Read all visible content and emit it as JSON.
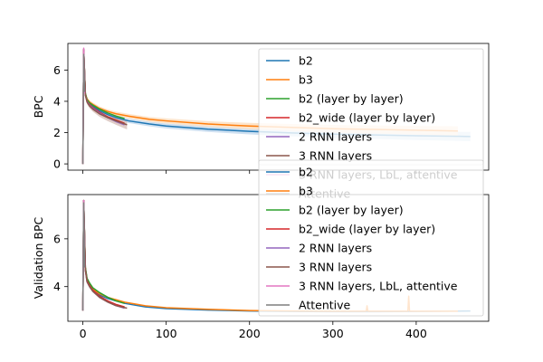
{
  "chart_data": [
    {
      "type": "line",
      "panel": "top",
      "ylabel": "BPC",
      "xlabel": "",
      "xlim": [
        -18,
        487
      ],
      "ylim": [
        -0.4,
        7.7
      ],
      "yticks": [
        0,
        2,
        4,
        6
      ],
      "xticks": [
        0,
        100,
        200,
        300,
        400
      ],
      "x_tick_labels_shown": false,
      "grid": false,
      "legend_position": "upper right",
      "series": [
        {
          "name": "b2",
          "color": "#1f77b4",
          "band_color": "#c6dbef",
          "x": [
            0,
            1,
            3,
            5,
            8,
            12,
            20,
            30,
            40,
            55,
            80,
            100,
            150,
            200,
            250,
            300,
            350,
            400,
            465
          ],
          "y": [
            0,
            7.3,
            4.5,
            4.1,
            3.9,
            3.7,
            3.4,
            3.15,
            2.95,
            2.75,
            2.55,
            2.42,
            2.22,
            2.08,
            1.98,
            1.9,
            1.85,
            1.8,
            1.75
          ]
        },
        {
          "name": "b3",
          "color": "#ff7f0e",
          "band_color": "#fde0c3",
          "x": [
            0,
            1,
            3,
            5,
            8,
            12,
            20,
            30,
            40,
            55,
            80,
            100,
            150,
            200,
            250,
            300,
            350,
            400,
            450
          ],
          "y": [
            0,
            7.3,
            4.5,
            4.15,
            3.95,
            3.8,
            3.55,
            3.35,
            3.2,
            3.05,
            2.85,
            2.75,
            2.55,
            2.42,
            2.33,
            2.25,
            2.2,
            2.15,
            2.1
          ]
        },
        {
          "name": "b2 (layer by layer)",
          "color": "#2ca02c",
          "x": [
            0,
            1,
            3,
            5,
            8,
            12,
            20,
            30,
            40,
            50
          ],
          "y": [
            0,
            7.3,
            4.5,
            4.1,
            3.9,
            3.75,
            3.5,
            3.25,
            3.05,
            2.9
          ]
        },
        {
          "name": "b2_wide (layer by layer)",
          "color": "#d62728",
          "x": [
            0,
            1,
            3,
            5,
            8,
            12,
            20,
            30,
            40,
            50
          ],
          "y": [
            0,
            7.3,
            4.4,
            4.0,
            3.8,
            3.6,
            3.3,
            3.0,
            2.8,
            2.6
          ]
        },
        {
          "name": "2 RNN layers",
          "color": "#9467bd",
          "x": [
            0,
            1,
            3,
            5,
            8,
            12,
            20,
            30,
            40,
            50
          ],
          "y": [
            0,
            7.3,
            4.4,
            4.0,
            3.75,
            3.55,
            3.25,
            2.95,
            2.7,
            2.5
          ]
        },
        {
          "name": "3 RNN layers",
          "color": "#8c564b",
          "band_color": "#d9c3bd",
          "x": [
            0,
            1,
            3,
            5,
            8,
            12,
            20,
            30,
            40,
            53
          ],
          "y": [
            0,
            7.3,
            4.4,
            3.95,
            3.7,
            3.5,
            3.2,
            2.95,
            2.75,
            2.5
          ]
        },
        {
          "name": "3 RNN layers, LbL, attentive",
          "color": "#e377c2",
          "x": [
            0,
            1,
            2
          ],
          "y": [
            0,
            7.4,
            4.5
          ]
        },
        {
          "name": "Attentive",
          "color": "#7f7f7f",
          "x": [
            0,
            1,
            2
          ],
          "y": [
            0,
            7.0,
            4.6
          ]
        }
      ]
    },
    {
      "type": "line",
      "panel": "bottom",
      "ylabel": "Validation BPC",
      "xlabel": "",
      "xlim": [
        -18,
        487
      ],
      "ylim": [
        2.55,
        7.85
      ],
      "yticks": [
        4,
        6
      ],
      "xticks": [
        0,
        100,
        200,
        300,
        400
      ],
      "x_tick_labels_shown": true,
      "grid": false,
      "legend_position": "upper right",
      "series": [
        {
          "name": "b2",
          "color": "#1f77b4",
          "x": [
            0,
            1,
            3,
            5,
            8,
            12,
            20,
            30,
            50,
            75,
            100,
            150,
            200,
            250,
            300,
            350,
            400,
            465
          ],
          "y": [
            3.0,
            7.6,
            4.8,
            4.3,
            4.1,
            3.9,
            3.65,
            3.5,
            3.3,
            3.15,
            3.08,
            3.02,
            2.98,
            2.96,
            2.95,
            2.95,
            2.96,
            2.98
          ]
        },
        {
          "name": "b3",
          "color": "#ff7f0e",
          "x": [
            0,
            1,
            3,
            5,
            8,
            12,
            20,
            30,
            50,
            75,
            100,
            150,
            200,
            250,
            300,
            340,
            341,
            342,
            390,
            391,
            392,
            450
          ],
          "y": [
            3.0,
            7.6,
            4.8,
            4.3,
            4.1,
            3.9,
            3.7,
            3.55,
            3.35,
            3.2,
            3.12,
            3.05,
            3.0,
            2.98,
            2.97,
            2.97,
            3.2,
            2.97,
            2.97,
            3.6,
            2.97,
            2.97
          ]
        },
        {
          "name": "b2 (layer by layer)",
          "color": "#2ca02c",
          "x": [
            0,
            1,
            3,
            5,
            8,
            12,
            20,
            30,
            40,
            50
          ],
          "y": [
            3.0,
            7.6,
            4.8,
            4.35,
            4.15,
            3.95,
            3.75,
            3.55,
            3.4,
            3.3
          ]
        },
        {
          "name": "b2_wide (layer by layer)",
          "color": "#d62728",
          "x": [
            0,
            1,
            3,
            5,
            8,
            12,
            20,
            30,
            40,
            50
          ],
          "y": [
            3.0,
            7.6,
            4.7,
            4.25,
            4.05,
            3.85,
            3.6,
            3.4,
            3.25,
            3.15
          ]
        },
        {
          "name": "2 RNN layers",
          "color": "#9467bd",
          "x": [
            0,
            1,
            3,
            5,
            8,
            12,
            20,
            30,
            40,
            50
          ],
          "y": [
            3.0,
            7.6,
            4.7,
            4.2,
            4.0,
            3.8,
            3.55,
            3.35,
            3.2,
            3.1
          ]
        },
        {
          "name": "3 RNN layers",
          "color": "#8c564b",
          "x": [
            0,
            1,
            3,
            5,
            8,
            12,
            20,
            30,
            40,
            53
          ],
          "y": [
            3.0,
            7.6,
            4.7,
            4.2,
            4.0,
            3.8,
            3.55,
            3.35,
            3.2,
            3.1
          ]
        },
        {
          "name": "3 RNN layers, LbL, attentive",
          "color": "#e377c2",
          "x": [
            0,
            1,
            2
          ],
          "y": [
            3.0,
            7.6,
            4.8
          ]
        },
        {
          "name": "Attentive",
          "color": "#7f7f7f",
          "x": [
            0,
            1,
            2
          ],
          "y": [
            3.0,
            7.5,
            4.8
          ]
        }
      ]
    }
  ]
}
